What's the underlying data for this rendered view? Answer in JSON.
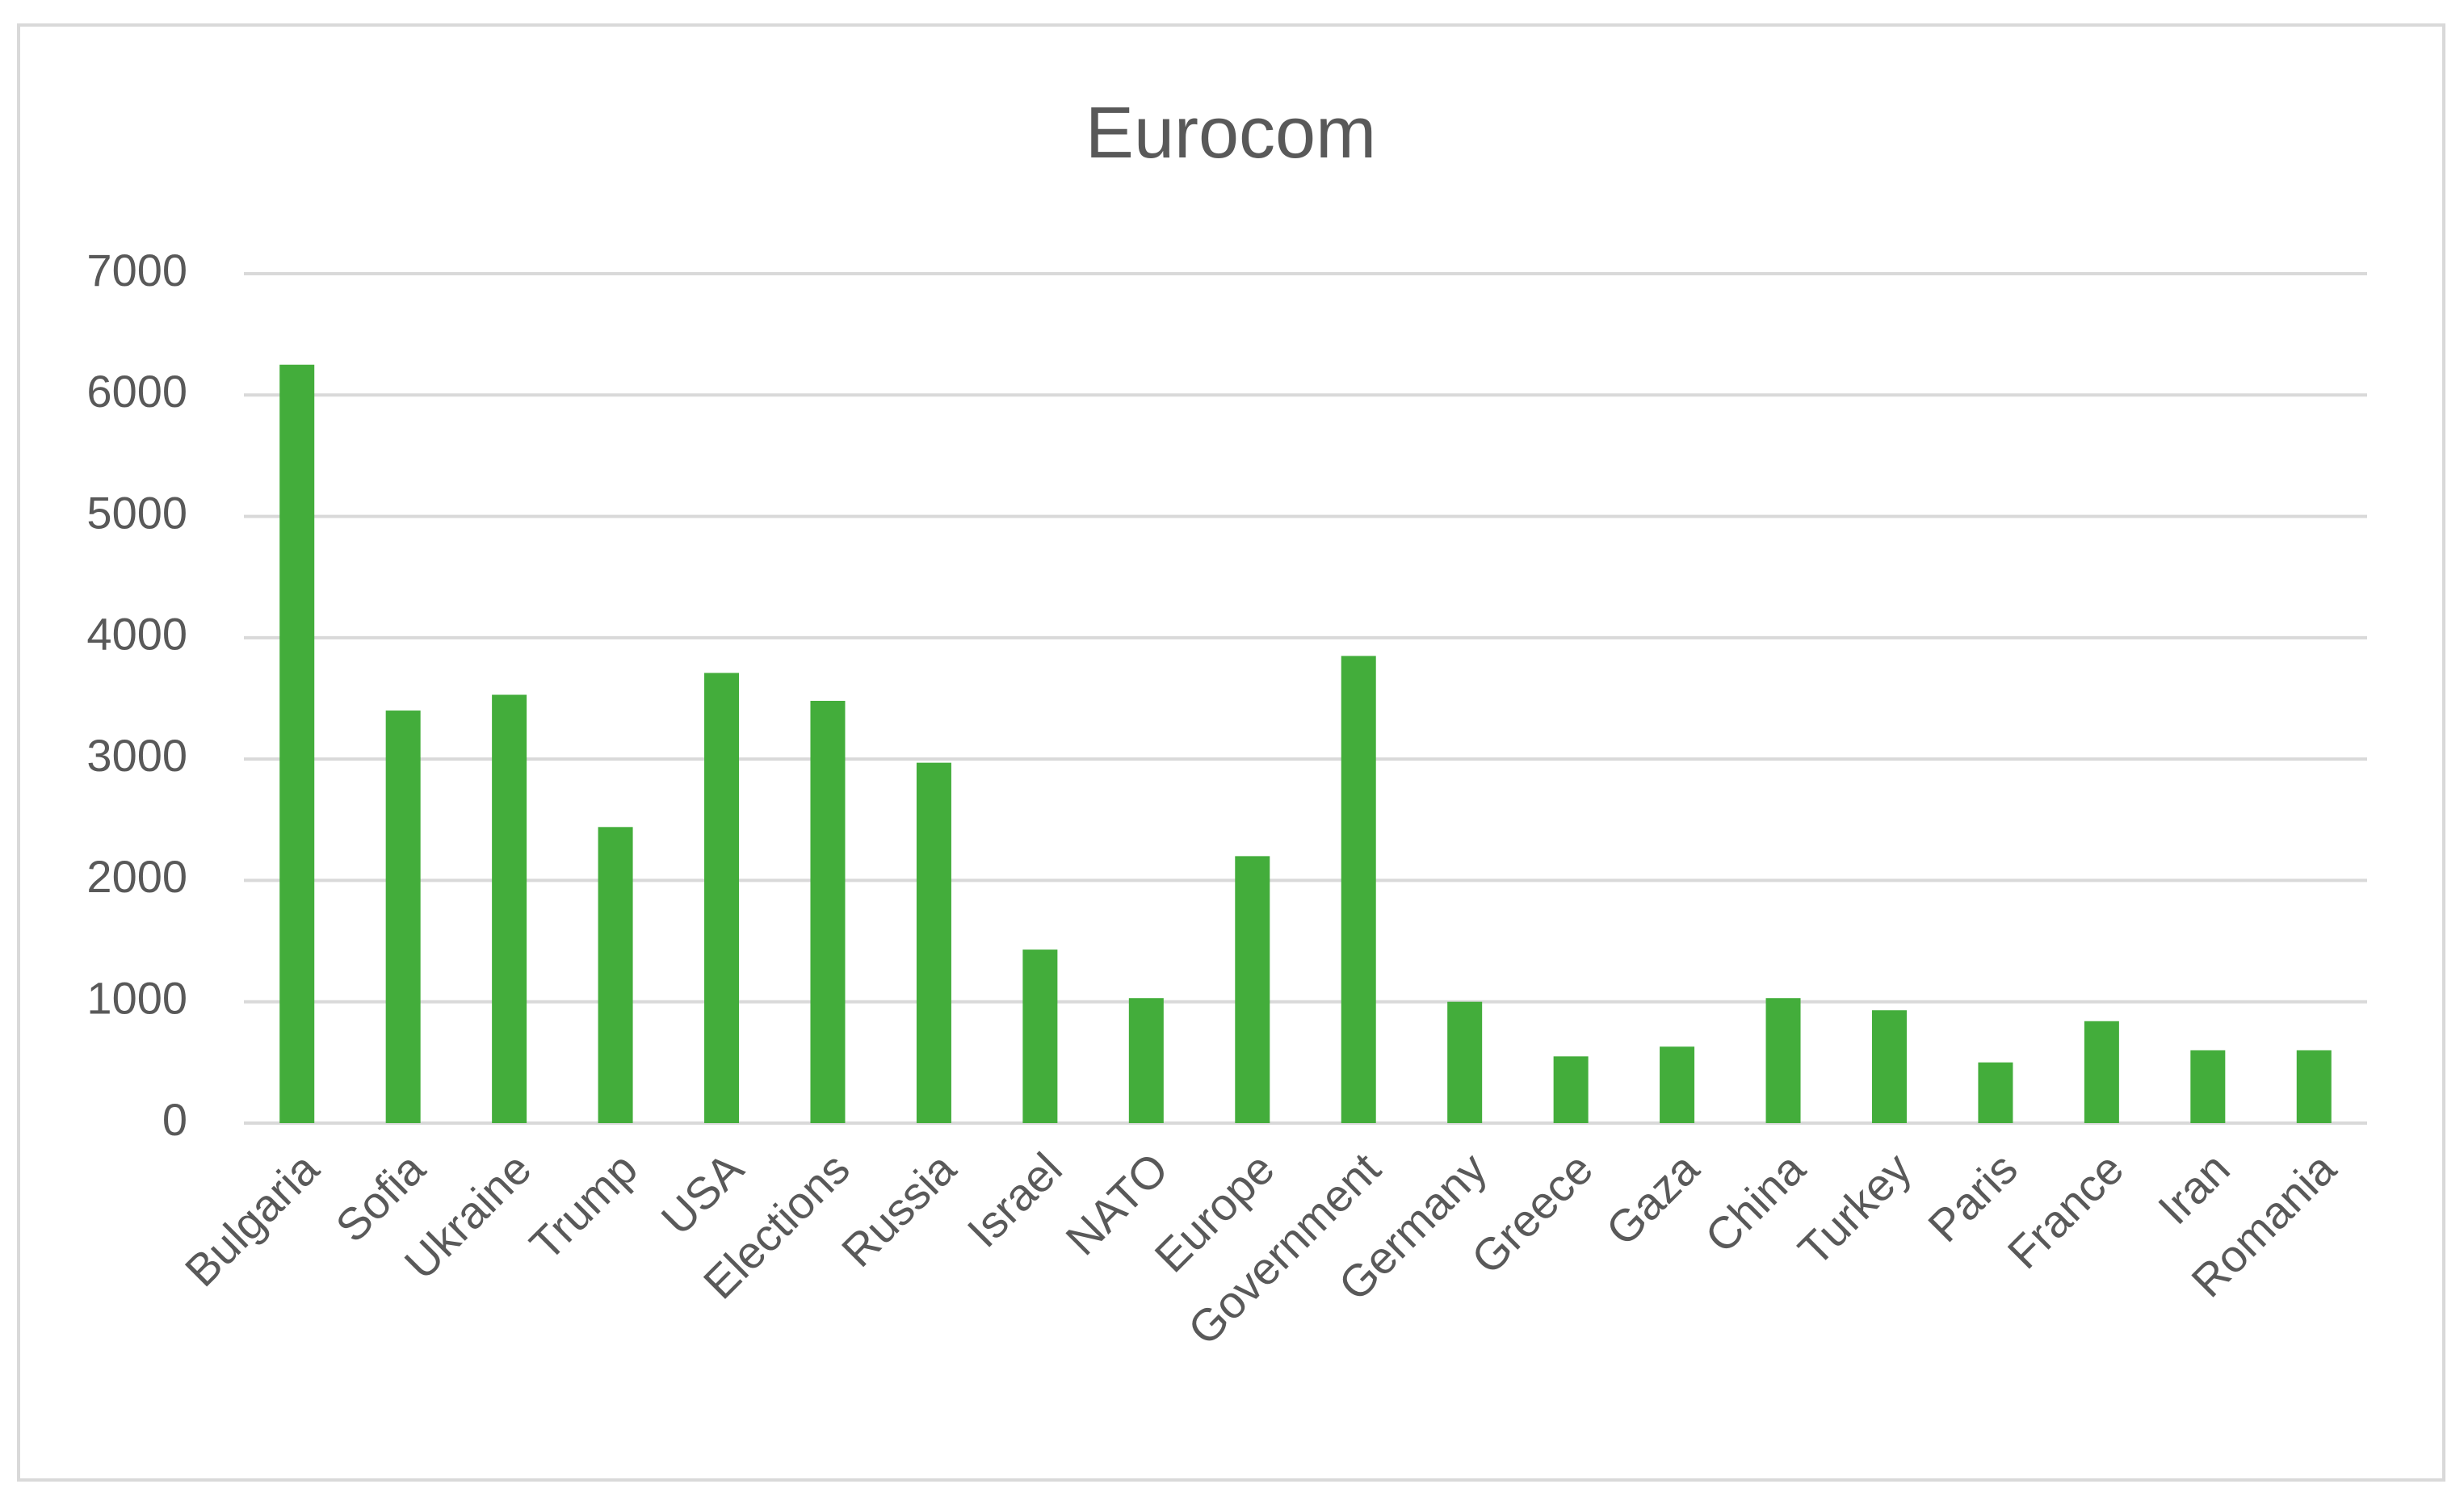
{
  "chart_data": {
    "type": "bar",
    "title": "Eurocom",
    "categories": [
      "Bulgaria",
      "Sofia",
      "Ukraine",
      "Trump",
      "USA",
      "Elections",
      "Russia",
      "Israel",
      "NATO",
      "Europe",
      "Government",
      "Germany",
      "Greece",
      "Gaza",
      "China",
      "Turkey",
      "Paris",
      "France",
      "Iran",
      "Romania"
    ],
    "values": [
      6250,
      3400,
      3530,
      2440,
      3710,
      3480,
      2970,
      1430,
      1030,
      2200,
      3850,
      1000,
      550,
      630,
      1030,
      930,
      500,
      840,
      600,
      600
    ],
    "color": "#43ad3b",
    "ylim": [
      0,
      7000
    ],
    "yticks": [
      0,
      1000,
      2000,
      3000,
      4000,
      5000,
      6000,
      7000
    ],
    "grid": true
  }
}
